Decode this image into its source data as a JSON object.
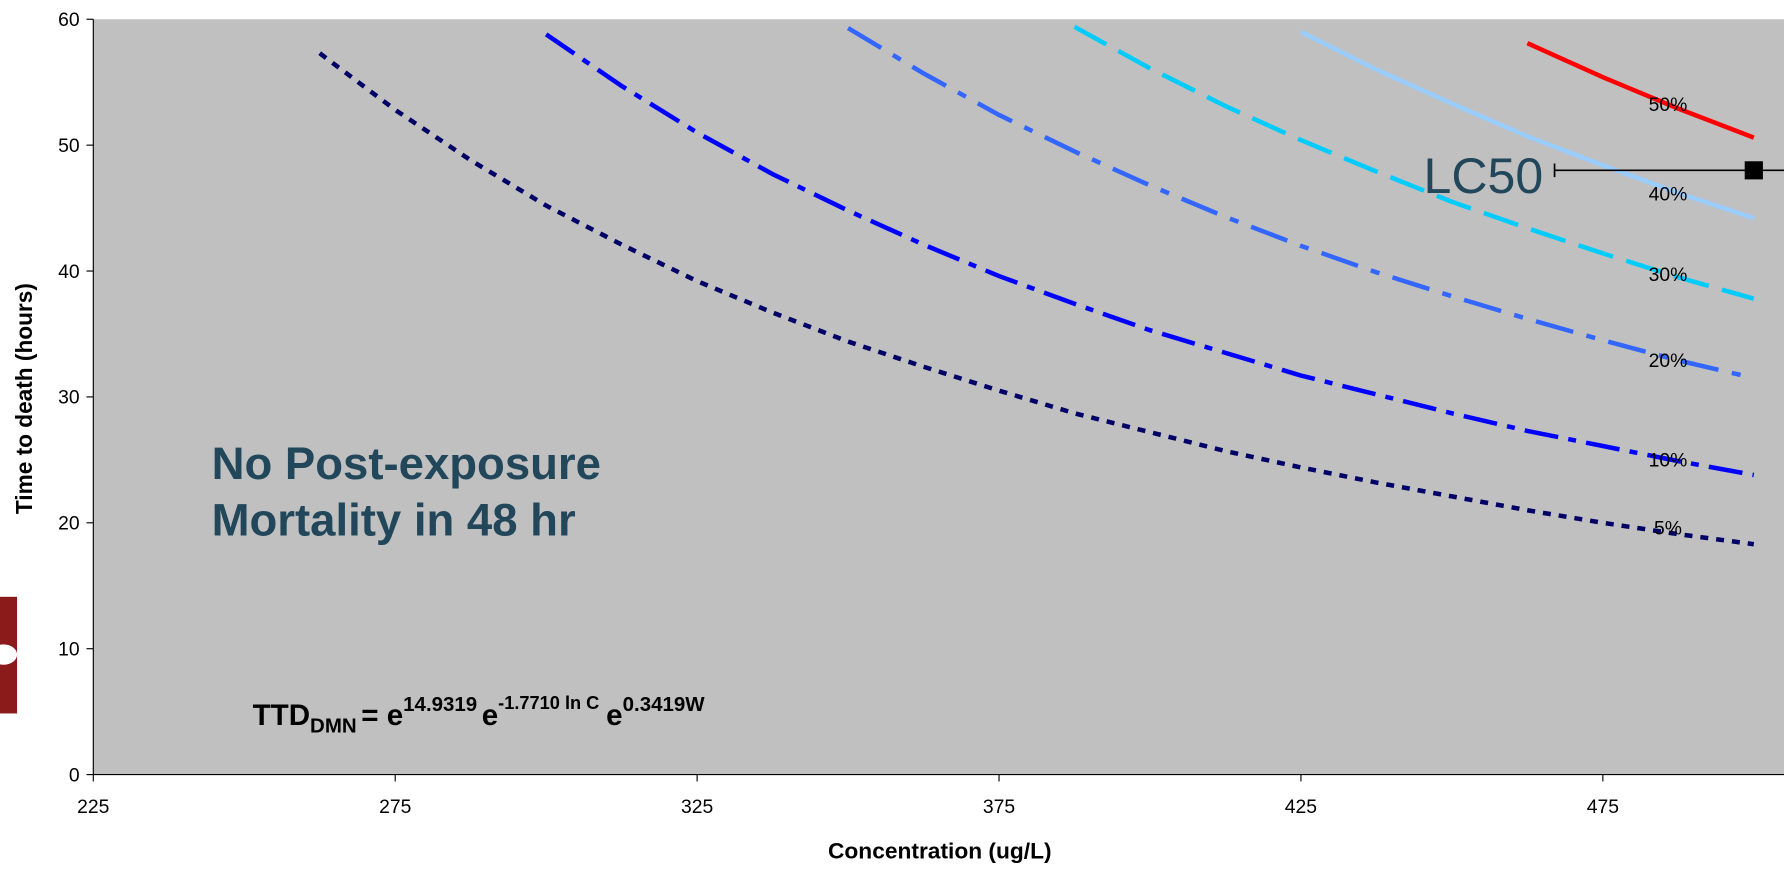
{
  "chart_data": {
    "type": "line",
    "xlabel": "Concentration (ug/L)",
    "ylabel": "Time to death (hours)",
    "xlim": [
      225,
      505
    ],
    "ylim": [
      0,
      60
    ],
    "xticks": [
      225,
      275,
      325,
      375,
      425,
      475
    ],
    "yticks": [
      0,
      10,
      20,
      30,
      40,
      50,
      60
    ],
    "x": [
      250,
      262.5,
      275,
      287.5,
      300,
      312.5,
      325,
      337.5,
      350,
      362.5,
      375,
      387.5,
      400,
      412.5,
      425,
      437.5,
      450,
      462.5,
      475,
      487.5,
      500
    ],
    "series": [
      {
        "name": "5%",
        "color": "#000066",
        "style": "dotted",
        "values": [
          null,
          57.3,
          52.8,
          48.8,
          45.2,
          42.1,
          39.2,
          36.7,
          34.4,
          32.4,
          30.5,
          28.7,
          27.2,
          25.7,
          24.4,
          23.2,
          22.1,
          21.0,
          20.0,
          19.1,
          18.3
        ]
      },
      {
        "name": "10%",
        "color": "#0000ff",
        "style": "dash-dot",
        "values": [
          null,
          null,
          null,
          null,
          58.8,
          54.7,
          51.0,
          47.7,
          44.8,
          42.1,
          39.6,
          37.4,
          35.3,
          33.5,
          31.7,
          30.2,
          28.7,
          27.3,
          26.1,
          24.9,
          23.8
        ]
      },
      {
        "name": "20%",
        "color": "#3366ff",
        "style": "long-dash-dot",
        "values": [
          null,
          null,
          null,
          null,
          null,
          null,
          null,
          null,
          59.3,
          55.7,
          52.4,
          49.5,
          46.8,
          44.3,
          42.0,
          39.9,
          38.0,
          36.2,
          34.5,
          32.9,
          31.5
        ]
      },
      {
        "name": "30%",
        "color": "#00ccff",
        "style": "dashed",
        "values": [
          null,
          null,
          null,
          null,
          null,
          null,
          null,
          null,
          null,
          null,
          null,
          59.4,
          56.1,
          53.1,
          50.4,
          47.9,
          45.5,
          43.4,
          41.4,
          39.5,
          37.8
        ]
      },
      {
        "name": "40%",
        "color": "#99ccff",
        "style": "solid",
        "values": [
          null,
          null,
          null,
          null,
          null,
          null,
          null,
          null,
          null,
          null,
          null,
          null,
          null,
          null,
          59.0,
          56.0,
          53.3,
          50.7,
          48.4,
          46.2,
          44.2
        ]
      },
      {
        "name": "50%",
        "color": "#ff0000",
        "style": "solid",
        "values": [
          null,
          null,
          null,
          null,
          null,
          null,
          null,
          null,
          null,
          null,
          null,
          null,
          null,
          null,
          null,
          null,
          null,
          58.1,
          55.4,
          52.9,
          50.6
        ]
      }
    ],
    "lc50": {
      "label": "LC50",
      "x": 500,
      "y": 48,
      "xerr": 33
    },
    "annotation": [
      "No Post-exposure",
      "Mortality in 48 hr"
    ],
    "formula": {
      "base": "TTD",
      "sub": "DMN",
      "eq": "= e",
      "exp1": "14.9319",
      "e2": "e",
      "exp2": "-1.7710 ln C",
      "e3": "e",
      "exp3": "0.3419W"
    }
  }
}
